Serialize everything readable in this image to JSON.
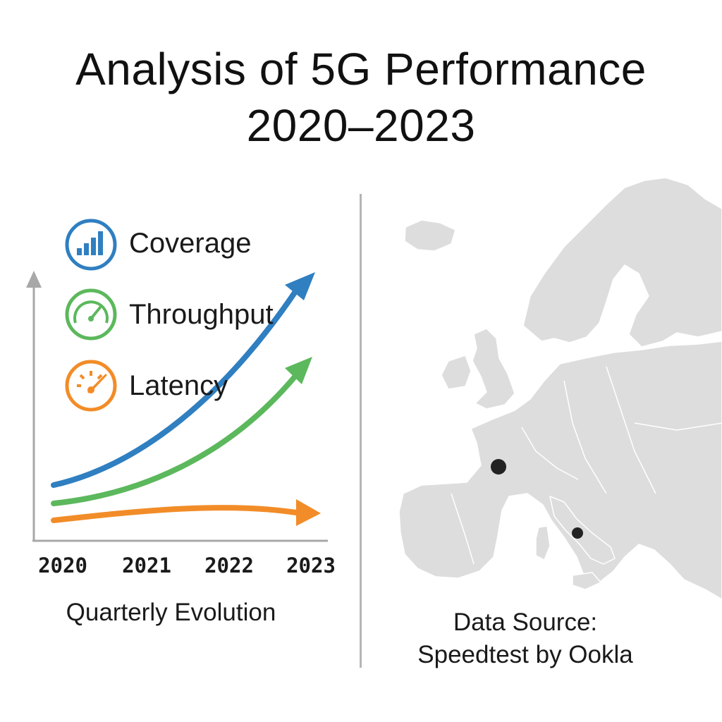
{
  "title": {
    "line1": "Analysis of 5G Performance",
    "line2": "2020–2023"
  },
  "legend": [
    {
      "label": "Coverage",
      "icon": "signal-bars-icon",
      "color": "#2f7fc1"
    },
    {
      "label": "Throughput",
      "icon": "speedometer-icon",
      "color": "#5cb85c"
    },
    {
      "label": "Latency",
      "icon": "gauge-icon",
      "color": "#f28c28"
    }
  ],
  "x_axis": {
    "years": [
      "2020",
      "2021",
      "2022",
      "2023"
    ],
    "caption": "Quarterly Evolution"
  },
  "map": {
    "region": "Europe",
    "marker_color": "#222222",
    "land_color": "#dddddd"
  },
  "source": {
    "line1": "Data Source:",
    "line2": "Speedtest by Ookla"
  }
}
